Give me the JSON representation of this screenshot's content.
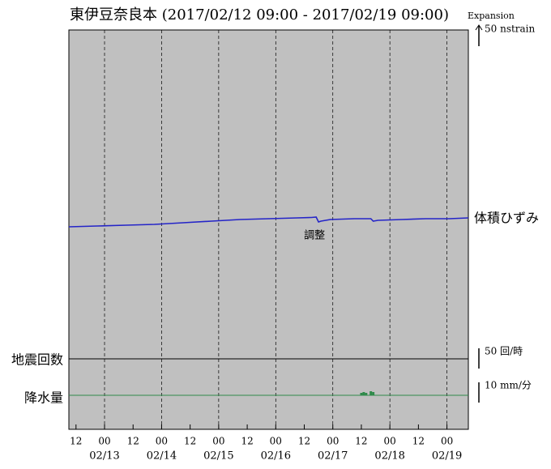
{
  "chart_data": {
    "type": "line",
    "title": "東伊豆奈良本 (2017/02/12 09:00 - 2017/02/19 09:00)",
    "xlim": [
      "2017/02/12 09:00",
      "2017/02/19 09:00"
    ],
    "xticks": [
      {
        "value": "2017/02/12 12:00",
        "label": "12"
      },
      {
        "value": "2017/02/13 00:00",
        "label": "00"
      },
      {
        "value": "2017/02/13 12:00",
        "label": "12"
      },
      {
        "value": "2017/02/14 00:00",
        "label": "00"
      },
      {
        "value": "2017/02/14 12:00",
        "label": "12"
      },
      {
        "value": "2017/02/15 00:00",
        "label": "00"
      },
      {
        "value": "2017/02/15 12:00",
        "label": "12"
      },
      {
        "value": "2017/02/16 00:00",
        "label": "00"
      },
      {
        "value": "2017/02/16 12:00",
        "label": "12"
      },
      {
        "value": "2017/02/17 00:00",
        "label": "00"
      },
      {
        "value": "2017/02/17 12:00",
        "label": "12"
      },
      {
        "value": "2017/02/18 00:00",
        "label": "00"
      },
      {
        "value": "2017/02/18 12:00",
        "label": "12"
      },
      {
        "value": "2017/02/19 00:00",
        "label": "00"
      }
    ],
    "date_ticks": [
      {
        "value": "2017/02/13 00:00",
        "label": "02/13"
      },
      {
        "value": "2017/02/14 00:00",
        "label": "02/14"
      },
      {
        "value": "2017/02/15 00:00",
        "label": "02/15"
      },
      {
        "value": "2017/02/16 00:00",
        "label": "02/16"
      },
      {
        "value": "2017/02/17 00:00",
        "label": "02/17"
      },
      {
        "value": "2017/02/18 00:00",
        "label": "02/18"
      },
      {
        "value": "2017/02/19 00:00",
        "label": "02/19"
      }
    ],
    "series": [
      {
        "name": "体積ひずみ",
        "type": "line",
        "color": "#2424c8",
        "scale_title": "Expansion",
        "scale": {
          "value": 50,
          "label": "50 nstrain"
        },
        "annotation": {
          "x": "2017/02/16 17:00",
          "text": "調整"
        },
        "x": [
          "2017/02/12 09:00",
          "2017/02/12 21:00",
          "2017/02/13 09:00",
          "2017/02/13 21:00",
          "2017/02/14 09:00",
          "2017/02/14 21:00",
          "2017/02/15 09:00",
          "2017/02/15 21:00",
          "2017/02/16 09:00",
          "2017/02/16 15:00",
          "2017/02/16 17:00",
          "2017/02/16 18:00",
          "2017/02/16 19:00",
          "2017/02/16 23:00",
          "2017/02/17 09:00",
          "2017/02/17 16:00",
          "2017/02/17 17:00",
          "2017/02/17 19:00",
          "2017/02/18 05:00",
          "2017/02/18 15:00",
          "2017/02/19 01:00",
          "2017/02/19 09:00"
        ],
        "values": [
          0,
          2,
          4,
          6,
          10,
          14,
          18,
          20,
          22,
          23,
          24,
          12,
          14,
          18,
          20,
          20,
          14,
          16,
          18,
          20,
          20,
          22
        ]
      },
      {
        "name": "地震回数",
        "type": "line",
        "color": "#000000",
        "scale": {
          "value": 50,
          "label": "50 回/時"
        },
        "x": [
          "2017/02/12 09:00",
          "2017/02/19 09:00"
        ],
        "values": [
          0,
          0
        ]
      },
      {
        "name": "降水量",
        "type": "bar",
        "color": "#2f8a4a",
        "scale": {
          "value": 10,
          "label": "10 mm/分"
        },
        "x": [
          "2017/02/17 12:00",
          "2017/02/17 13:00",
          "2017/02/17 14:00",
          "2017/02/17 16:00",
          "2017/02/17 17:00"
        ],
        "values": [
          1.2,
          1.6,
          1.2,
          2,
          1.6
        ]
      }
    ]
  }
}
